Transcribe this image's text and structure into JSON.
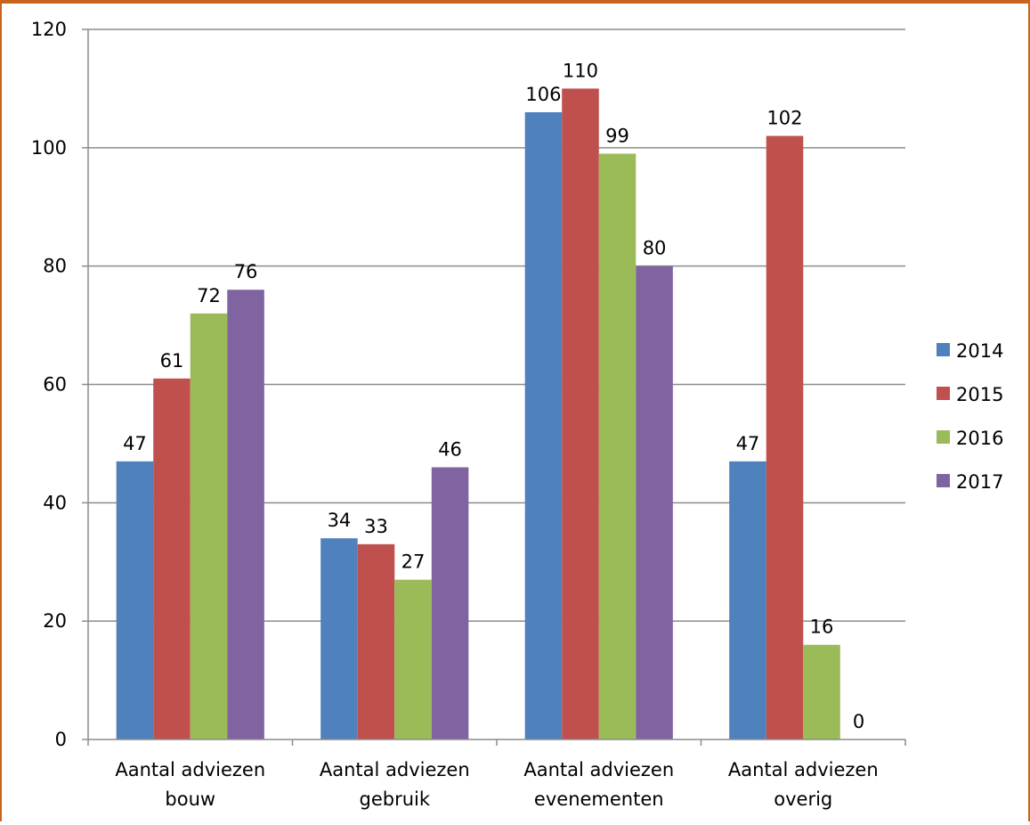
{
  "chart_data": {
    "type": "bar",
    "categories": [
      [
        "Aantal adviezen",
        "bouw"
      ],
      [
        "Aantal adviezen",
        "gebruik"
      ],
      [
        "Aantal adviezen",
        "evenementen"
      ],
      [
        "Aantal adviezen",
        "overig"
      ]
    ],
    "series": [
      {
        "name": "2014",
        "color": "#4f81bd",
        "values": [
          47,
          34,
          106,
          47
        ]
      },
      {
        "name": "2015",
        "color": "#c0504d",
        "values": [
          61,
          33,
          110,
          102
        ]
      },
      {
        "name": "2016",
        "color": "#9bbb59",
        "values": [
          72,
          27,
          99,
          16
        ]
      },
      {
        "name": "2017",
        "color": "#8064a2",
        "values": [
          76,
          46,
          80,
          0
        ]
      }
    ],
    "ylim": [
      0,
      120
    ],
    "yticks": [
      0,
      20,
      40,
      60,
      80,
      100,
      120
    ],
    "grid": true,
    "data_labels": true,
    "legend": "right",
    "frame_color": "#c8641e"
  }
}
